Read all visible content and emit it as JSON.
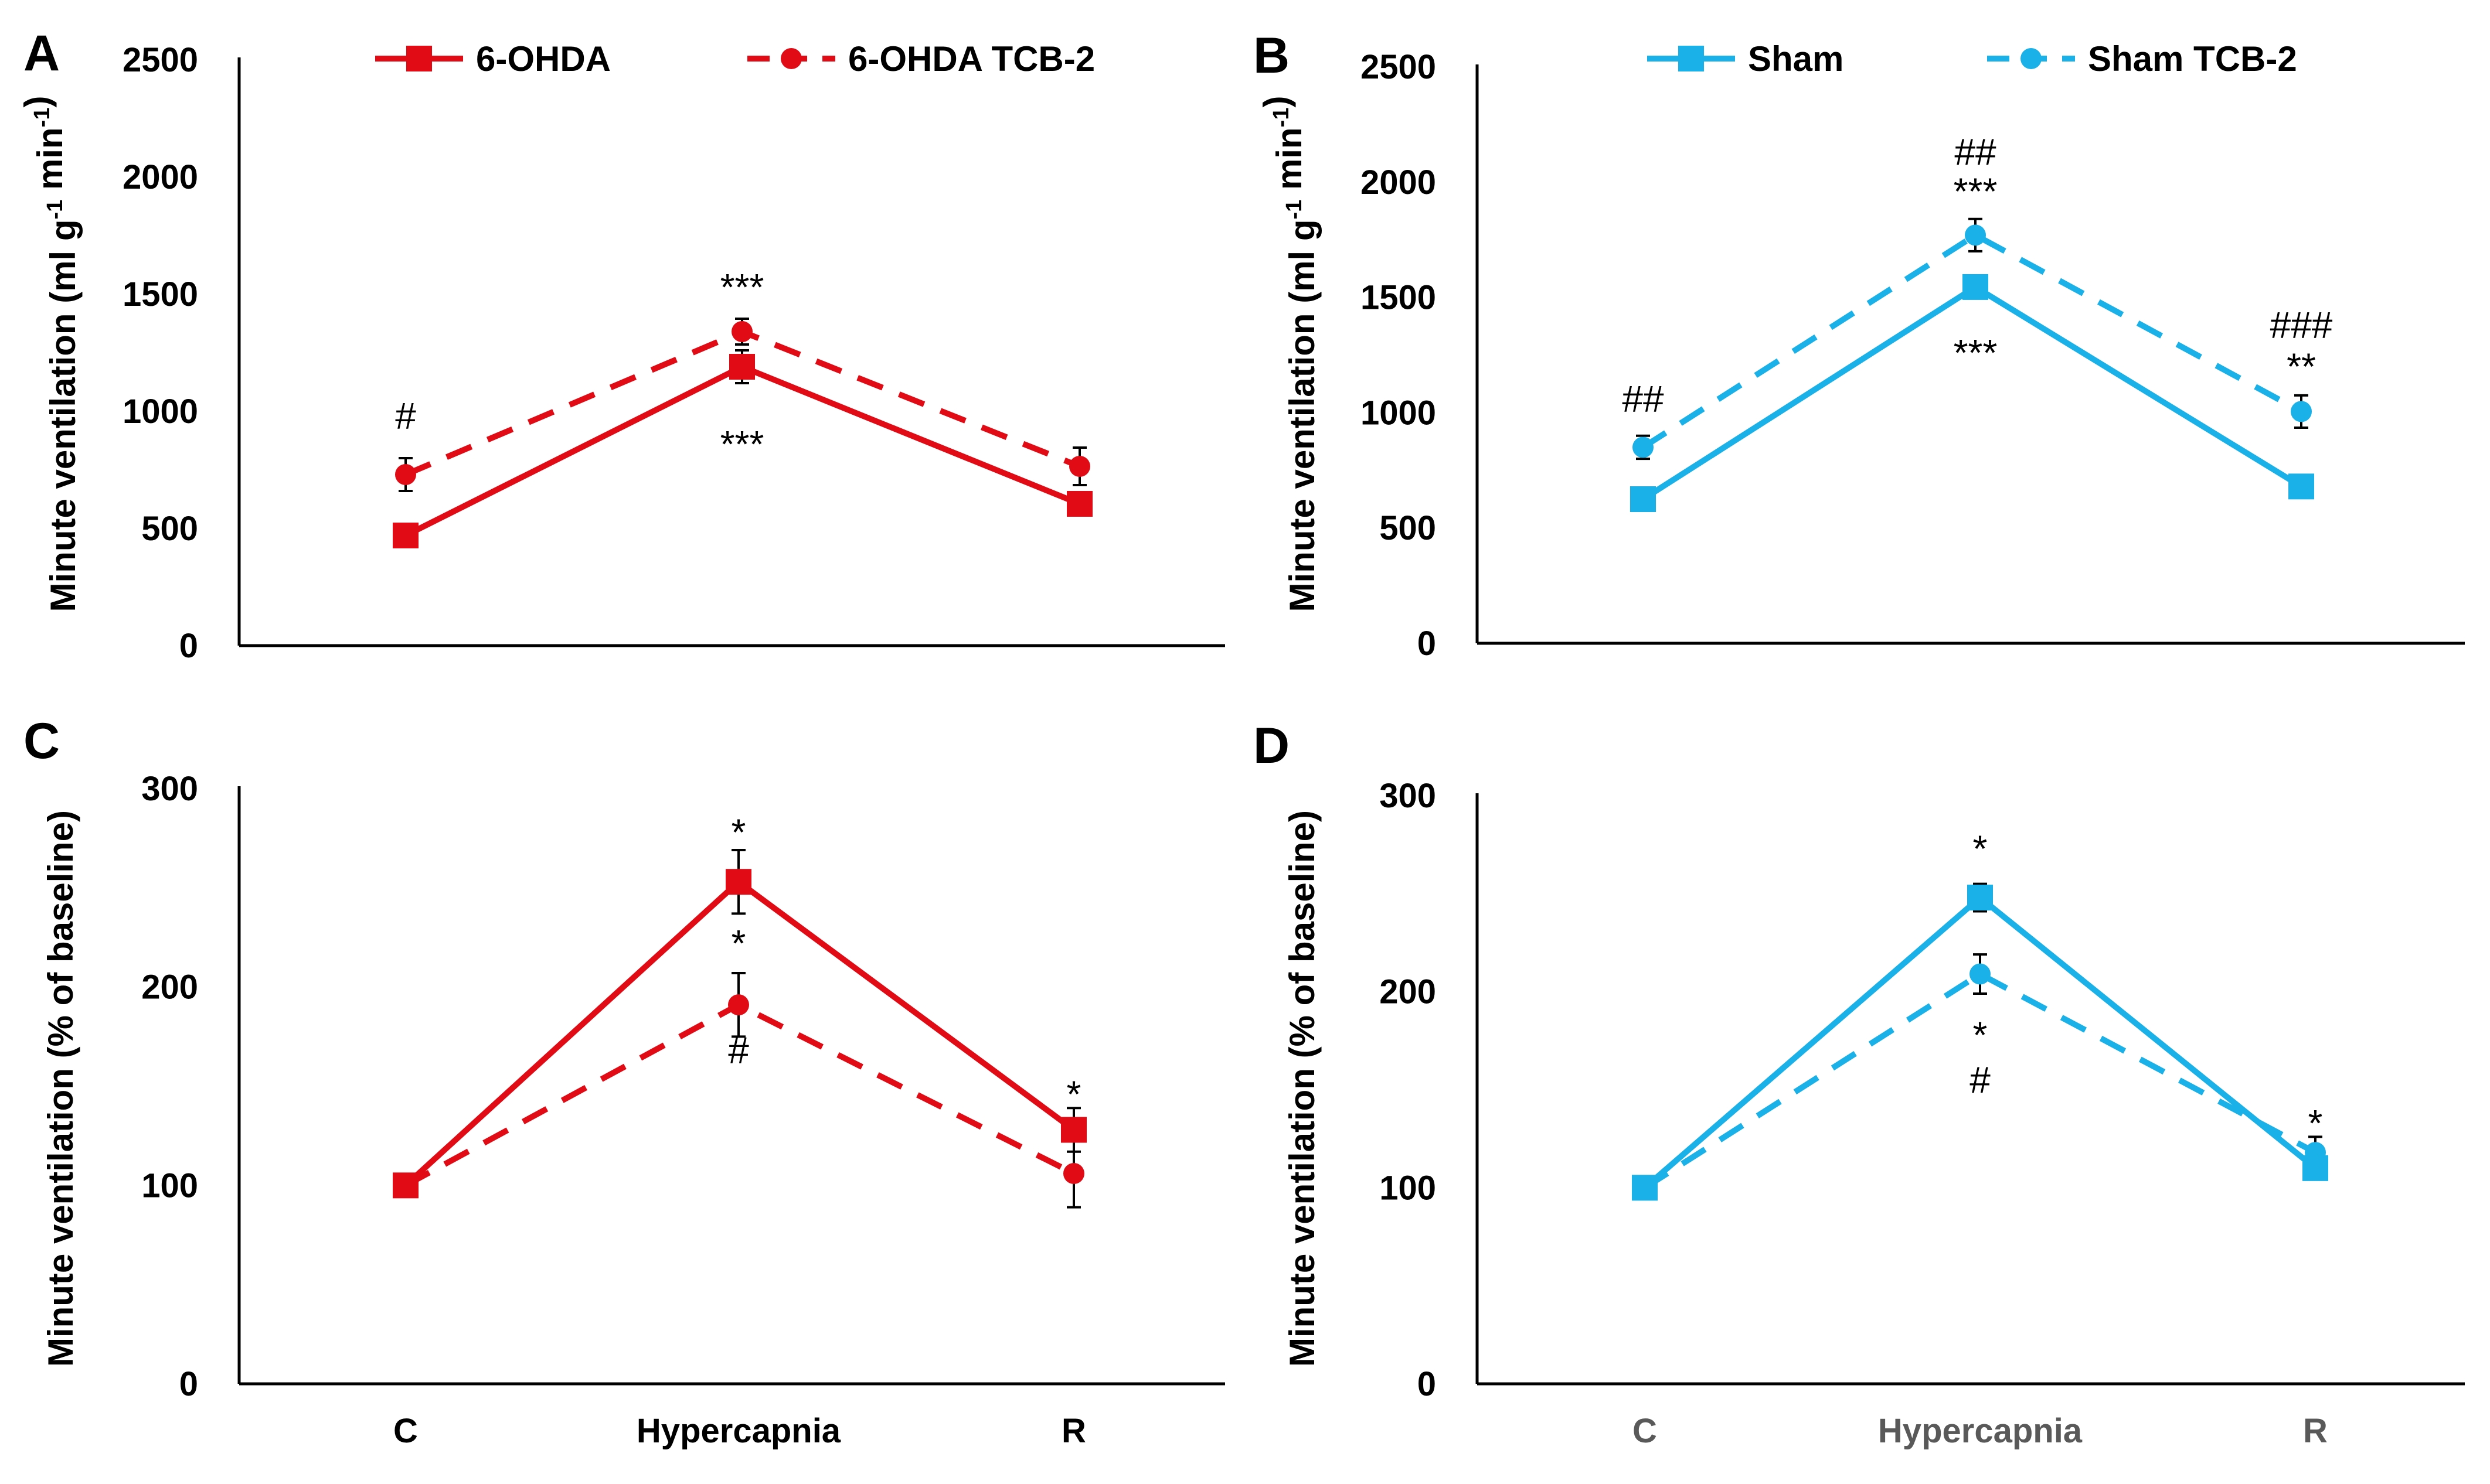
{
  "colors": {
    "red": "#e00b14",
    "blue": "#1ab0e8",
    "axis": "#000000",
    "cat_dark": "#000000",
    "cat_grey": "#595959"
  },
  "legends": [
    {
      "panel": "A",
      "items": [
        {
          "label": "6-OHDA",
          "style": "solid",
          "marker": "square"
        },
        {
          "label": "6-OHDA TCB-2",
          "style": "dashed",
          "marker": "circle"
        }
      ]
    },
    {
      "panel": "B",
      "items": [
        {
          "label": "Sham",
          "style": "solid",
          "marker": "square"
        },
        {
          "label": "Sham TCB-2",
          "style": "dashed",
          "marker": "circle"
        }
      ]
    }
  ],
  "chart_data": [
    {
      "type": "line",
      "panel": "A",
      "color": "blue_or_red",
      "ylabel_main": "Minute ventilation (ml g",
      "ylabel_sup1": "-1",
      "ylabel_mid": " min",
      "ylabel_sup2": "-1",
      "ylabel_end": ")",
      "ylim": [
        0,
        2500
      ],
      "yticks": [
        "0",
        "500",
        "1000",
        "1500",
        "2000",
        "2500"
      ],
      "categories": [
        "C",
        "Hypercapnia",
        "R"
      ],
      "series": [
        {
          "name": "6-OHDA",
          "style": "solid",
          "marker": "square",
          "values": [
            470,
            1190,
            605
          ],
          "errors": [
            0,
            70,
            30
          ]
        },
        {
          "name": "6-OHDA TCB-2",
          "style": "dashed",
          "marker": "circle",
          "values": [
            730,
            1340,
            765
          ],
          "errors": [
            70,
            55,
            80
          ]
        }
      ],
      "annotations": [
        {
          "cat": 0,
          "value": 980,
          "text": "#"
        },
        {
          "cat": 1,
          "value": 1530,
          "text": "***"
        },
        {
          "cat": 1,
          "value": 860,
          "text": "***"
        }
      ]
    },
    {
      "type": "line",
      "panel": "B",
      "ylabel_main": "Minute ventilation (ml g",
      "ylabel_sup1": "-1",
      "ylabel_mid": " min",
      "ylabel_sup2": "-1",
      "ylabel_end": ")",
      "ylim": [
        0,
        2500
      ],
      "yticks": [
        "0",
        "500",
        "1000",
        "1500",
        "2000",
        "2500"
      ],
      "categories": [
        "C",
        "Hypercapnia",
        "R"
      ],
      "series": [
        {
          "name": "Sham",
          "style": "solid",
          "marker": "square",
          "values": [
            625,
            1545,
            680
          ],
          "errors": [
            0,
            40,
            0
          ]
        },
        {
          "name": "Sham TCB-2",
          "style": "dashed",
          "marker": "circle",
          "values": [
            850,
            1770,
            1005
          ],
          "errors": [
            50,
            70,
            70
          ]
        }
      ],
      "annotations": [
        {
          "cat": 0,
          "value": 1060,
          "text": "##"
        },
        {
          "cat": 1,
          "value": 2130,
          "text": "##"
        },
        {
          "cat": 1,
          "value": 1960,
          "text": "***"
        },
        {
          "cat": 1,
          "value": 1260,
          "text": "***"
        },
        {
          "cat": 2,
          "value": 1380,
          "text": "###"
        },
        {
          "cat": 2,
          "value": 1200,
          "text": "**"
        }
      ]
    },
    {
      "type": "line",
      "panel": "C",
      "ylabel": "Minute ventilation (% of baseline)",
      "ylim": [
        0,
        300
      ],
      "yticks": [
        "0",
        "100",
        "200",
        "300"
      ],
      "categories": [
        "C",
        "Hypercapnia",
        "R"
      ],
      "series": [
        {
          "name": "6-OHDA",
          "style": "solid",
          "marker": "square",
          "values": [
            100,
            253,
            128
          ],
          "errors": [
            0,
            16,
            11
          ]
        },
        {
          "name": "6-OHDA TCB-2",
          "style": "dashed",
          "marker": "circle",
          "values": [
            100,
            191,
            106
          ],
          "errors": [
            0,
            16,
            17
          ]
        }
      ],
      "annotations": [
        {
          "cat": 1,
          "value": 278,
          "text": "*"
        },
        {
          "cat": 1,
          "value": 222,
          "text": "*"
        },
        {
          "cat": 1,
          "value": 168,
          "text": "#"
        },
        {
          "cat": 2,
          "value": 146,
          "text": "*"
        }
      ]
    },
    {
      "type": "line",
      "panel": "D",
      "ylabel": "Minute ventilation (% of baseline)",
      "ylim": [
        0,
        300
      ],
      "yticks": [
        "0",
        "100",
        "200",
        "300"
      ],
      "categories": [
        "C",
        "Hypercapnia",
        "R"
      ],
      "series": [
        {
          "name": "Sham",
          "style": "solid",
          "marker": "square",
          "values": [
            100,
            248,
            110
          ],
          "errors": [
            0,
            7,
            0
          ]
        },
        {
          "name": "Sham TCB-2",
          "style": "dashed",
          "marker": "circle",
          "values": [
            100,
            209,
            118
          ],
          "errors": [
            0,
            10,
            8
          ]
        }
      ],
      "annotations": [
        {
          "cat": 1,
          "value": 273,
          "text": "*"
        },
        {
          "cat": 1,
          "value": 178,
          "text": "*"
        },
        {
          "cat": 1,
          "value": 155,
          "text": "#"
        },
        {
          "cat": 2,
          "value": 133,
          "text": "*"
        }
      ]
    }
  ]
}
